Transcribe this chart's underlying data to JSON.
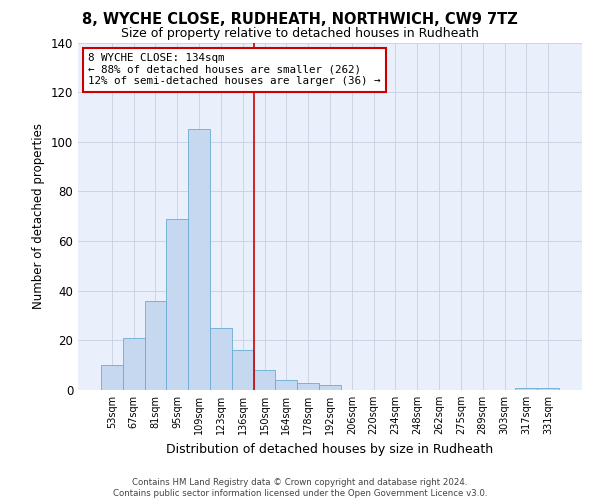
{
  "title_line1": "8, WYCHE CLOSE, RUDHEATH, NORTHWICH, CW9 7TZ",
  "title_line2": "Size of property relative to detached houses in Rudheath",
  "xlabel": "Distribution of detached houses by size in Rudheath",
  "ylabel": "Number of detached properties",
  "bar_labels": [
    "53sqm",
    "67sqm",
    "81sqm",
    "95sqm",
    "109sqm",
    "123sqm",
    "136sqm",
    "150sqm",
    "164sqm",
    "178sqm",
    "192sqm",
    "206sqm",
    "220sqm",
    "234sqm",
    "248sqm",
    "262sqm",
    "275sqm",
    "289sqm",
    "303sqm",
    "317sqm",
    "331sqm"
  ],
  "bar_values": [
    10,
    21,
    36,
    69,
    105,
    25,
    16,
    8,
    4,
    3,
    2,
    0,
    0,
    0,
    0,
    0,
    0,
    0,
    0,
    1,
    1
  ],
  "bar_color": "#c5d8f0",
  "bar_edge_color": "#6aaad4",
  "vline_color": "#cc0000",
  "annotation_text": "8 WYCHE CLOSE: 134sqm\n← 88% of detached houses are smaller (262)\n12% of semi-detached houses are larger (36) →",
  "annotation_box_color": "#cc0000",
  "background_color": "#eaf0fb",
  "ylim": [
    0,
    140
  ],
  "yticks": [
    0,
    20,
    40,
    60,
    80,
    100,
    120,
    140
  ],
  "footer_line1": "Contains HM Land Registry data © Crown copyright and database right 2024.",
  "footer_line2": "Contains public sector information licensed under the Open Government Licence v3.0.",
  "grid_color": "#c8d0e0"
}
